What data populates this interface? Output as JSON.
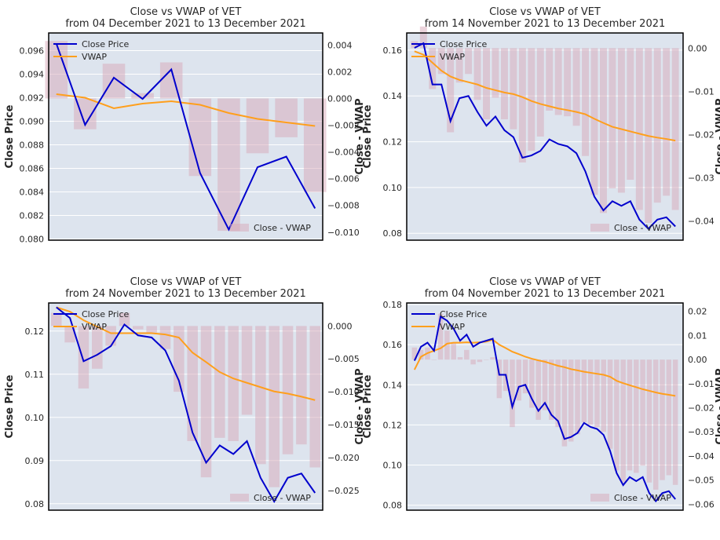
{
  "colors": {
    "close": "#0000cd",
    "vwap": "#ff9f1c",
    "diff": "#d8a8b8",
    "plot_bg": "#dde4ee",
    "grid": "#ffffff"
  },
  "chart_data": [
    {
      "type": "line",
      "title": "Close vs VWAP of VET",
      "subtitle": "from 04 December 2021 to 13 December 2021",
      "ylabel": "Close Price",
      "y2label": "Close - VWAP",
      "ylim": [
        0.0799,
        0.0975
      ],
      "y2lim": [
        -0.0106,
        0.0049
      ],
      "yticks": [
        0.08,
        0.082,
        0.084,
        0.086,
        0.088,
        0.09,
        0.092,
        0.094,
        0.096
      ],
      "yticklabels": [
        "0.080",
        "0.082",
        "0.084",
        "0.086",
        "0.088",
        "0.090",
        "0.092",
        "0.094",
        "0.096"
      ],
      "y2ticks": [
        0.004,
        0.002,
        0.0,
        -0.002,
        -0.004,
        -0.006,
        -0.008,
        -0.01
      ],
      "y2ticklabels": [
        "0.004",
        "0.002",
        "0.000",
        "−0.002",
        "−0.004",
        "−0.006",
        "−0.008",
        "−0.010"
      ],
      "legend": [
        "Close Price",
        "VWAP"
      ],
      "legend2": "Close - VWAP",
      "series": [
        {
          "name": "Close Price",
          "values": [
            0.0966,
            0.0897,
            0.0937,
            0.0919,
            0.0944,
            0.0856,
            0.0808,
            0.0861,
            0.087,
            0.0826
          ]
        },
        {
          "name": "VWAP",
          "values": [
            0.0923,
            0.092,
            0.0911,
            0.0915,
            0.0917,
            0.0914,
            0.0907,
            0.0902,
            0.0899,
            0.0896
          ]
        },
        {
          "name": "Close - VWAP",
          "values": [
            0.0043,
            -0.0023,
            0.0026,
            0.0004,
            0.0027,
            -0.0058,
            -0.0099,
            -0.0041,
            -0.0029,
            -0.007
          ]
        }
      ]
    },
    {
      "type": "line",
      "title": "Close vs VWAP of VET",
      "subtitle": "from 14 November 2021 to 13 December 2021",
      "ylabel": "Close Price",
      "y2label": "Close - VWAP",
      "ylim": [
        0.077,
        0.1675
      ],
      "y2lim": [
        -0.0445,
        0.0035
      ],
      "yticks": [
        0.08,
        0.1,
        0.12,
        0.14,
        0.16
      ],
      "yticklabels": [
        "0.08",
        "0.10",
        "0.12",
        "0.14",
        "0.16"
      ],
      "y2ticks": [
        0.0,
        -0.01,
        -0.02,
        -0.03,
        -0.04
      ],
      "y2ticklabels": [
        "0.00",
        "−0.01",
        "−0.02",
        "−0.03",
        "−0.04"
      ],
      "legend": [
        "Close Price",
        "VWAP"
      ],
      "legend2": "Close - VWAP",
      "series": [
        {
          "name": "Close Price",
          "values": [
            0.161,
            0.163,
            0.145,
            0.145,
            0.129,
            0.139,
            0.14,
            0.133,
            0.127,
            0.131,
            0.125,
            0.122,
            0.113,
            0.114,
            0.116,
            0.121,
            0.119,
            0.118,
            0.115,
            0.107,
            0.096,
            0.09,
            0.094,
            0.092,
            0.094,
            0.086,
            0.082,
            0.086,
            0.087,
            0.083
          ]
        },
        {
          "name": "VWAP",
          "values": [
            0.1595,
            0.158,
            0.1545,
            0.151,
            0.1485,
            0.147,
            0.146,
            0.145,
            0.1435,
            0.1425,
            0.1415,
            0.1408,
            0.1395,
            0.1378,
            0.1365,
            0.1355,
            0.1345,
            0.1338,
            0.133,
            0.132,
            0.13,
            0.1282,
            0.1265,
            0.1255,
            0.1245,
            0.1235,
            0.1225,
            0.1218,
            0.1212,
            0.1205
          ]
        },
        {
          "name": "Close - VWAP",
          "values": [
            0.0016,
            0.005,
            -0.0095,
            -0.006,
            -0.0195,
            -0.008,
            -0.006,
            -0.012,
            -0.0165,
            -0.0115,
            -0.0165,
            -0.0188,
            -0.0265,
            -0.0238,
            -0.0205,
            -0.0145,
            -0.0155,
            -0.0158,
            -0.018,
            -0.025,
            -0.034,
            -0.0382,
            -0.0325,
            -0.0335,
            -0.0305,
            -0.0375,
            -0.0405,
            -0.0358,
            -0.0342,
            -0.0375
          ]
        }
      ]
    },
    {
      "type": "line",
      "title": "Close vs VWAP of VET",
      "subtitle": "from 24 November 2021 to 13 December 2021",
      "ylabel": "Close Price",
      "y2label": "Close - VWAP",
      "ylim": [
        0.0785,
        0.1265
      ],
      "y2lim": [
        -0.028,
        0.0035
      ],
      "yticks": [
        0.08,
        0.09,
        0.1,
        0.11,
        0.12
      ],
      "yticklabels": [
        "0.08",
        "0.09",
        "0.10",
        "0.11",
        "0.12"
      ],
      "y2ticks": [
        0.0,
        -0.005,
        -0.01,
        -0.015,
        -0.02,
        -0.025
      ],
      "y2ticklabels": [
        "0.000",
        "−0.005",
        "−0.010",
        "−0.015",
        "−0.020",
        "−0.025"
      ],
      "legend": [
        "Close Price",
        "VWAP"
      ],
      "legend2": "Close - VWAP",
      "series": [
        {
          "name": "Close Price",
          "values": [
            0.1255,
            0.123,
            0.113,
            0.1145,
            0.1165,
            0.1215,
            0.119,
            0.1185,
            0.1155,
            0.1085,
            0.0965,
            0.0895,
            0.0935,
            0.0915,
            0.0945,
            0.086,
            0.0805,
            0.086,
            0.087,
            0.0825
          ]
        },
        {
          "name": "VWAP",
          "values": [
            0.1255,
            0.1245,
            0.1225,
            0.121,
            0.1195,
            0.1195,
            0.1195,
            0.1195,
            0.1192,
            0.1185,
            0.115,
            0.1128,
            0.1105,
            0.109,
            0.108,
            0.107,
            0.106,
            0.1055,
            0.1048,
            0.104
          ]
        },
        {
          "name": "Close - VWAP",
          "values": [
            0.002,
            -0.0025,
            -0.0095,
            -0.0065,
            -0.003,
            0.002,
            -0.0005,
            -0.001,
            -0.0035,
            -0.01,
            -0.0175,
            -0.023,
            -0.017,
            -0.0175,
            -0.0135,
            -0.021,
            -0.0245,
            -0.0195,
            -0.018,
            -0.0215
          ]
        }
      ]
    },
    {
      "type": "line",
      "title": "Close vs VWAP of VET",
      "subtitle": "from 04 November 2021 to 13 December 2021",
      "ylabel": "Close Price",
      "y2label": "Close - VWAP",
      "ylim": [
        0.0775,
        0.1808
      ],
      "y2lim": [
        -0.0625,
        0.0235
      ],
      "yticks": [
        0.08,
        0.1,
        0.12,
        0.14,
        0.16,
        0.18
      ],
      "yticklabels": [
        "0.08",
        "0.10",
        "0.12",
        "0.14",
        "0.16",
        "0.18"
      ],
      "y2ticks": [
        0.02,
        0.01,
        0.0,
        -0.01,
        -0.02,
        -0.03,
        -0.04,
        -0.05,
        -0.06
      ],
      "y2ticklabels": [
        "0.02",
        "0.01",
        "0.00",
        "−0.01",
        "−0.02",
        "−0.03",
        "−0.04",
        "−0.05",
        "−0.06"
      ],
      "legend": [
        "Close Price",
        "VWAP"
      ],
      "legend2": "Close - VWAP",
      "series": [
        {
          "name": "Close Price",
          "values": [
            0.152,
            0.159,
            0.161,
            0.157,
            0.174,
            0.172,
            0.168,
            0.162,
            0.165,
            0.159,
            0.161,
            0.162,
            0.163,
            0.145,
            0.145,
            0.129,
            0.139,
            0.14,
            0.133,
            0.127,
            0.131,
            0.125,
            0.122,
            0.113,
            0.114,
            0.116,
            0.121,
            0.119,
            0.118,
            0.115,
            0.107,
            0.096,
            0.09,
            0.094,
            0.092,
            0.094,
            0.086,
            0.082,
            0.086,
            0.087,
            0.083
          ]
        },
        {
          "name": "VWAP",
          "values": [
            0.1475,
            0.154,
            0.1558,
            0.157,
            0.1582,
            0.1605,
            0.161,
            0.161,
            0.1612,
            0.161,
            0.1612,
            0.1615,
            0.1625,
            0.16,
            0.1583,
            0.1565,
            0.1553,
            0.154,
            0.153,
            0.1522,
            0.1515,
            0.1505,
            0.1495,
            0.1488,
            0.1478,
            0.1472,
            0.1465,
            0.146,
            0.1455,
            0.145,
            0.144,
            0.142,
            0.1408,
            0.1398,
            0.1388,
            0.1378,
            0.137,
            0.1362,
            0.1355,
            0.135,
            0.1345
          ]
        },
        {
          "name": "Close - VWAP",
          "values": [
            0.005,
            0.004,
            0.005,
            0.0,
            0.019,
            0.012,
            0.007,
            0.001,
            0.004,
            -0.002,
            -0.001,
            0.0,
            0.001,
            -0.016,
            -0.013,
            -0.028,
            -0.017,
            -0.014,
            -0.02,
            -0.025,
            -0.021,
            -0.025,
            -0.028,
            -0.036,
            -0.034,
            -0.031,
            -0.026,
            -0.027,
            -0.028,
            -0.03,
            -0.037,
            -0.046,
            -0.051,
            -0.046,
            -0.047,
            -0.044,
            -0.051,
            -0.054,
            -0.05,
            -0.048,
            -0.052
          ]
        }
      ]
    }
  ]
}
